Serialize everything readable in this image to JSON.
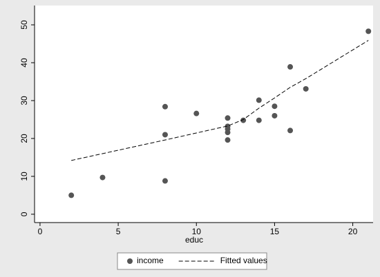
{
  "chart_data": {
    "type": "scatter",
    "x_label": "educ",
    "xlim": [
      -0.35,
      21.3
    ],
    "ylim": [
      -2.2,
      55.1
    ],
    "xticks": [
      0,
      5,
      10,
      15,
      20
    ],
    "yticks": [
      0,
      10,
      20,
      30,
      40,
      50
    ],
    "legend": "bottom",
    "series": [
      {
        "name": "income",
        "color": "#555555",
        "style": "markers",
        "x": [
          2,
          4,
          8,
          8,
          8,
          10,
          12,
          12,
          12,
          12,
          12,
          13,
          14,
          14,
          15,
          15,
          16,
          16,
          17,
          21
        ],
        "values": [
          5,
          9.7,
          8.8,
          21,
          28.4,
          26.6,
          25.4,
          23.2,
          22.5,
          21.6,
          19.6,
          24.8,
          30.1,
          24.8,
          28.5,
          26,
          38.9,
          22.1,
          33.1,
          48.3
        ]
      },
      {
        "name": "Fitted values",
        "color": "#000000",
        "style": "dashed-line",
        "x": [
          2,
          8,
          12,
          13,
          14,
          15,
          16,
          17,
          21
        ],
        "values": [
          14.2,
          19.6,
          23.3,
          25,
          28,
          30.7,
          33.5,
          35.8,
          45.9
        ]
      }
    ]
  }
}
